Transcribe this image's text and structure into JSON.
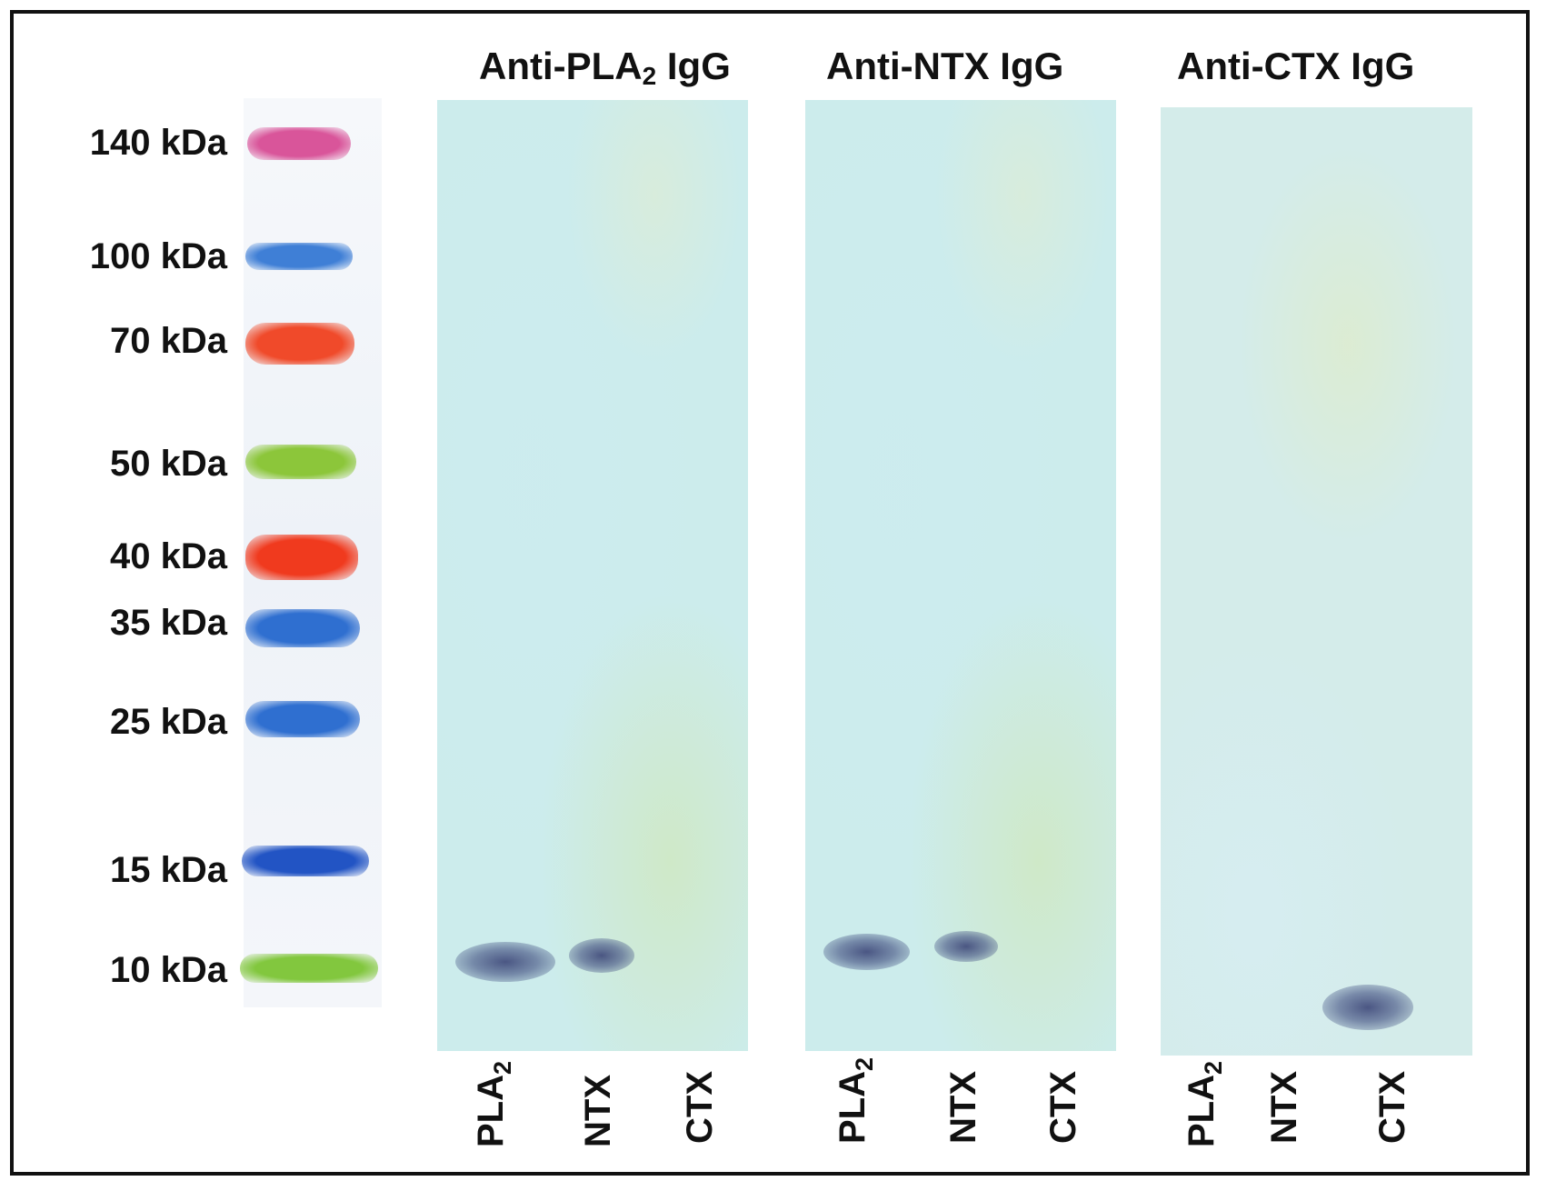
{
  "ladder": {
    "markers": [
      {
        "label": "140 kDa",
        "color": "#d9559a"
      },
      {
        "label": "100 kDa",
        "color": "#3f7fd6"
      },
      {
        "label": "70 kDa",
        "color": "#f04a2a"
      },
      {
        "label": "50 kDa",
        "color": "#8cc63a"
      },
      {
        "label": "40 kDa",
        "color": "#f03a1e"
      },
      {
        "label": "35 kDa",
        "color": "#2f6fd0"
      },
      {
        "label": "25 kDa",
        "color": "#2f6fd0"
      },
      {
        "label": "15 kDa",
        "color": "#2254c4"
      },
      {
        "label": "10 kDa",
        "color": "#82c73e"
      }
    ]
  },
  "panels": [
    {
      "title_main": "Anti-PLA",
      "title_sub": "2",
      "title_tail": " IgG",
      "lanes": [
        {
          "main": "PLA",
          "sub": "2"
        },
        {
          "main": "NTX",
          "sub": ""
        },
        {
          "main": "CTX",
          "sub": ""
        }
      ]
    },
    {
      "title_main": "Anti-NTX IgG",
      "title_sub": "",
      "title_tail": "",
      "lanes": [
        {
          "main": "PLA",
          "sub": "2"
        },
        {
          "main": "NTX",
          "sub": ""
        },
        {
          "main": "CTX",
          "sub": ""
        }
      ]
    },
    {
      "title_main": "Anti-CTX IgG",
      "title_sub": "",
      "title_tail": "",
      "lanes": [
        {
          "main": "PLA",
          "sub": "2"
        },
        {
          "main": "NTX",
          "sub": ""
        },
        {
          "main": "CTX",
          "sub": ""
        }
      ]
    }
  ],
  "colors": {
    "membrane": "#ccecec",
    "band": "#46507a",
    "border": "#111111"
  }
}
